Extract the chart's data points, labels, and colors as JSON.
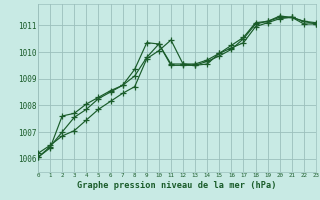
{
  "bg_color": "#c8eae4",
  "grid_color": "#9bbfbc",
  "line_color": "#1a5c2a",
  "title": "Graphe pression niveau de la mer (hPa)",
  "xmin": 0,
  "xmax": 23,
  "ymin": 1005.5,
  "ymax": 1011.8,
  "yticks": [
    1006,
    1007,
    1008,
    1009,
    1010,
    1011
  ],
  "xticks": [
    0,
    1,
    2,
    3,
    4,
    5,
    6,
    7,
    8,
    9,
    10,
    11,
    12,
    13,
    14,
    15,
    16,
    17,
    18,
    19,
    20,
    21,
    22,
    23
  ],
  "series1": [
    [
      0,
      1006.2
    ],
    [
      1,
      1006.5
    ],
    [
      2,
      1006.85
    ],
    [
      3,
      1007.05
    ],
    [
      4,
      1007.45
    ],
    [
      5,
      1007.85
    ],
    [
      6,
      1008.15
    ],
    [
      7,
      1008.45
    ],
    [
      8,
      1008.7
    ],
    [
      9,
      1009.75
    ],
    [
      10,
      1010.05
    ],
    [
      11,
      1010.45
    ],
    [
      12,
      1009.55
    ],
    [
      13,
      1009.5
    ],
    [
      14,
      1009.55
    ],
    [
      15,
      1009.95
    ],
    [
      16,
      1010.15
    ],
    [
      17,
      1010.35
    ],
    [
      18,
      1010.95
    ],
    [
      19,
      1011.1
    ],
    [
      20,
      1011.25
    ],
    [
      21,
      1011.3
    ],
    [
      22,
      1011.15
    ],
    [
      23,
      1011.1
    ]
  ],
  "series2": [
    [
      0,
      1006.05
    ],
    [
      1,
      1006.4
    ],
    [
      2,
      1007.6
    ],
    [
      3,
      1007.7
    ],
    [
      4,
      1008.05
    ],
    [
      5,
      1008.3
    ],
    [
      6,
      1008.55
    ],
    [
      7,
      1008.75
    ],
    [
      8,
      1009.35
    ],
    [
      9,
      1010.35
    ],
    [
      10,
      1010.3
    ],
    [
      11,
      1009.55
    ],
    [
      12,
      1009.55
    ],
    [
      13,
      1009.55
    ],
    [
      14,
      1009.7
    ],
    [
      15,
      1009.95
    ],
    [
      16,
      1010.25
    ],
    [
      17,
      1010.55
    ],
    [
      18,
      1011.1
    ],
    [
      19,
      1011.15
    ],
    [
      20,
      1011.35
    ],
    [
      21,
      1011.3
    ],
    [
      22,
      1011.15
    ],
    [
      23,
      1011.05
    ]
  ],
  "series3": [
    [
      0,
      1006.05
    ],
    [
      1,
      1006.45
    ],
    [
      2,
      1007.0
    ],
    [
      3,
      1007.55
    ],
    [
      4,
      1007.85
    ],
    [
      5,
      1008.25
    ],
    [
      6,
      1008.5
    ],
    [
      7,
      1008.75
    ],
    [
      8,
      1009.1
    ],
    [
      9,
      1009.8
    ],
    [
      10,
      1010.3
    ],
    [
      11,
      1009.5
    ],
    [
      12,
      1009.5
    ],
    [
      13,
      1009.5
    ],
    [
      14,
      1009.65
    ],
    [
      15,
      1009.85
    ],
    [
      16,
      1010.1
    ],
    [
      17,
      1010.5
    ],
    [
      18,
      1011.05
    ],
    [
      19,
      1011.15
    ],
    [
      20,
      1011.3
    ],
    [
      21,
      1011.3
    ],
    [
      22,
      1011.05
    ],
    [
      23,
      1011.05
    ]
  ]
}
